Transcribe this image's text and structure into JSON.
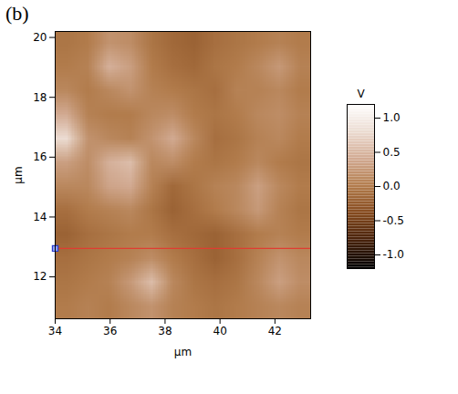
{
  "chart_data": {
    "type": "heatmap",
    "panel": "(b)",
    "xlabel": "µm",
    "ylabel": "µm",
    "xlim": [
      34,
      43.3
    ],
    "ylim": [
      10.6,
      20.2
    ],
    "xticks": [
      34,
      36,
      38,
      40,
      42
    ],
    "yticks": [
      12,
      14,
      16,
      18,
      20
    ],
    "cells": [
      [
        0.0,
        0.05,
        0.0,
        0.1,
        0.2,
        0.05,
        0.0,
        -0.05,
        0.0,
        0.05,
        0.1,
        0.05
      ],
      [
        -0.05,
        0.0,
        0.05,
        0.25,
        0.55,
        0.1,
        -0.05,
        -0.1,
        -0.05,
        0.1,
        0.3,
        0.15
      ],
      [
        -0.1,
        -0.05,
        0.0,
        0.05,
        0.15,
        0.0,
        -0.1,
        -0.2,
        -0.1,
        0.05,
        0.2,
        0.1
      ],
      [
        -0.2,
        -0.1,
        -0.05,
        0.0,
        0.0,
        -0.1,
        -0.15,
        -0.2,
        -0.1,
        0.0,
        0.05,
        0.0
      ],
      [
        -0.1,
        0.0,
        0.05,
        0.1,
        -0.05,
        -0.2,
        -0.1,
        0.0,
        0.1,
        0.25,
        0.05,
        -0.05
      ],
      [
        0.1,
        0.1,
        0.35,
        0.4,
        0.05,
        -0.15,
        -0.05,
        0.05,
        0.1,
        0.3,
        0.1,
        0.0
      ],
      [
        0.3,
        0.15,
        0.45,
        0.55,
        0.1,
        0.15,
        0.0,
        -0.05,
        0.0,
        0.1,
        0.0,
        -0.05
      ],
      [
        0.8,
        0.2,
        0.1,
        0.05,
        0.2,
        0.4,
        0.1,
        -0.1,
        -0.05,
        0.05,
        0.1,
        0.0
      ],
      [
        0.4,
        0.05,
        0.0,
        0.0,
        0.1,
        0.15,
        0.0,
        -0.05,
        0.0,
        0.1,
        0.15,
        0.05
      ],
      [
        0.1,
        0.0,
        0.1,
        0.2,
        0.05,
        0.0,
        -0.05,
        -0.1,
        0.05,
        0.05,
        0.1,
        0.0
      ],
      [
        0.0,
        0.05,
        0.45,
        0.3,
        0.0,
        -0.1,
        -0.15,
        -0.05,
        0.0,
        0.1,
        0.25,
        0.05
      ],
      [
        -0.05,
        0.0,
        0.2,
        0.15,
        -0.05,
        -0.15,
        -0.2,
        -0.1,
        -0.05,
        0.0,
        0.05,
        0.0
      ]
    ],
    "colorbar": {
      "title": "V",
      "lim": [
        -1.2,
        1.2
      ],
      "ticks": [
        {
          "value": -1,
          "label": "-1.0"
        },
        -0.5,
        {
          "value": 0,
          "label": "0.0"
        },
        0.5,
        {
          "value": 1,
          "label": "1.0"
        }
      ],
      "colors": [
        "#000000",
        "#45200a",
        "#84491d",
        "#b27c4c",
        "#d2aa92",
        "#ecdcd2",
        "#ffffff"
      ]
    },
    "profile_line": {
      "y": 12.95,
      "color": "#e03c31"
    }
  }
}
